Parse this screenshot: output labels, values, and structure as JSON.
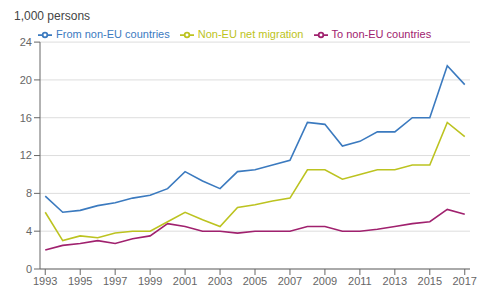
{
  "chart_data": {
    "type": "line",
    "y_label": "1,000 persons",
    "x": [
      1993,
      1994,
      1995,
      1996,
      1997,
      1998,
      1999,
      2000,
      2001,
      2002,
      2003,
      2004,
      2005,
      2006,
      2007,
      2008,
      2009,
      2010,
      2011,
      2012,
      2013,
      2014,
      2015,
      2016,
      2017
    ],
    "series": [
      {
        "name": "From non-EU countries",
        "color": "#3b7abf",
        "values": [
          7.7,
          6.0,
          6.2,
          6.7,
          7.0,
          7.5,
          7.8,
          8.5,
          10.3,
          9.3,
          8.5,
          10.3,
          10.5,
          11.0,
          11.5,
          15.5,
          15.3,
          13.0,
          13.5,
          14.5,
          14.5,
          16.0,
          16.0,
          21.5,
          19.5
        ]
      },
      {
        "name": "To non-EU countries",
        "color": "#a0216e",
        "values": [
          2.0,
          2.5,
          2.7,
          3.0,
          2.7,
          3.2,
          3.5,
          4.8,
          4.5,
          4.0,
          4.0,
          3.8,
          4.0,
          4.0,
          4.0,
          4.5,
          4.5,
          4.0,
          4.0,
          4.2,
          4.5,
          4.8,
          5.0,
          6.3,
          5.8
        ]
      },
      {
        "name": "Non-EU net migration",
        "color": "#bcc320",
        "values": [
          6.0,
          3.0,
          3.5,
          3.3,
          3.8,
          4.0,
          4.0,
          5.0,
          6.0,
          5.2,
          4.5,
          6.5,
          6.8,
          7.2,
          7.5,
          10.5,
          10.5,
          9.5,
          10.0,
          10.5,
          10.5,
          11.0,
          11.0,
          15.5,
          14.0
        ]
      }
    ],
    "xlim": [
      1992.7,
      2017.3
    ],
    "xticks": [
      1993,
      1995,
      1997,
      1999,
      2001,
      2003,
      2005,
      2007,
      2009,
      2011,
      2013,
      2015,
      2017
    ],
    "ylim": [
      0,
      24
    ],
    "yticks": [
      0,
      4,
      8,
      12,
      16,
      20,
      24
    ],
    "grid": true,
    "legend": "upper left"
  }
}
